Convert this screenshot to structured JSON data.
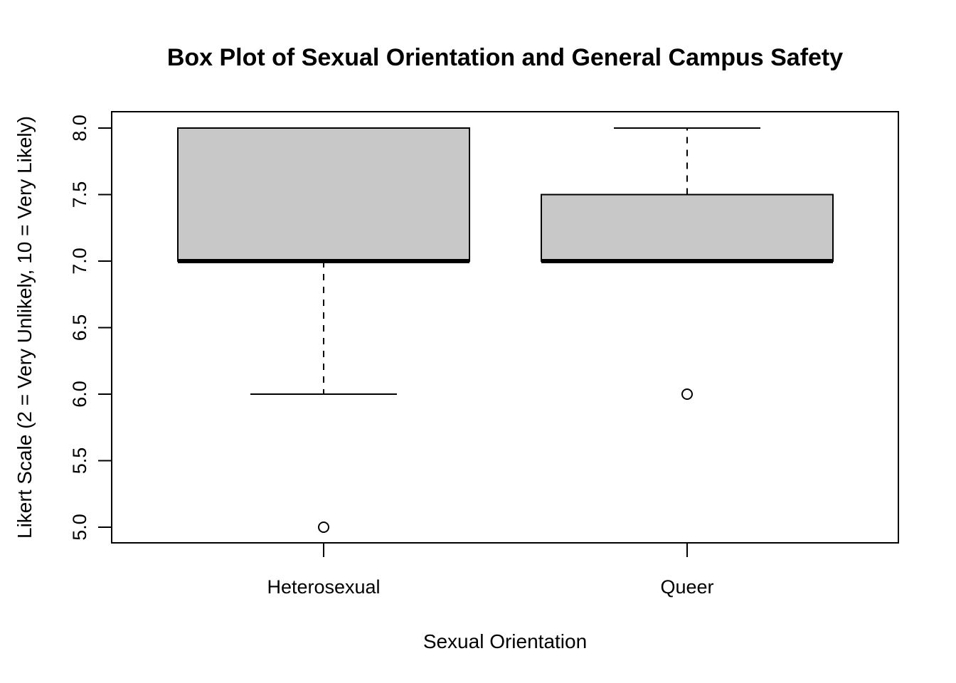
{
  "chart_data": {
    "type": "box",
    "title": "Box Plot of Sexual Orientation and General Campus Safety",
    "xlabel": "Sexual Orientation",
    "ylabel": "Likert Scale (2 = Very Unlikely, 10 = Very Likely)",
    "ylim": [
      4.9,
      8.12
    ],
    "yticks": [
      "5.0",
      "5.5",
      "6.0",
      "6.5",
      "7.0",
      "7.5",
      "8.0"
    ],
    "categories": [
      "Heterosexual",
      "Queer"
    ],
    "boxes": [
      {
        "category": "Heterosexual",
        "whisker_low": 6.0,
        "q1": 7.0,
        "median": 7.0,
        "q3": 8.0,
        "whisker_high": 8.0,
        "outliers": [
          5.0
        ]
      },
      {
        "category": "Queer",
        "whisker_low": 7.0,
        "q1": 7.0,
        "median": 7.0,
        "q3": 7.5,
        "whisker_high": 8.0,
        "outliers": [
          6.0
        ]
      }
    ],
    "box_fill": "#c8c8c8",
    "line_color": "#000000",
    "grid": false,
    "legend": "none"
  }
}
